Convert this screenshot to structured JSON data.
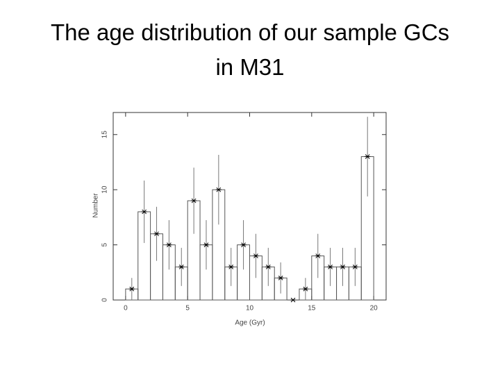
{
  "chart_data": {
    "type": "histogram",
    "title": "The age distribution of our sample GCs in M31",
    "x_label": "Age (Gyr)",
    "y_label": "Number",
    "bins": [
      0,
      1,
      2,
      3,
      4,
      5,
      6,
      7,
      8,
      9,
      10,
      11,
      12,
      13,
      14,
      15,
      16,
      17,
      18,
      19,
      20
    ],
    "values": [
      1,
      8,
      6,
      5,
      3,
      9,
      5,
      10,
      3,
      5,
      4,
      3,
      2,
      0,
      1,
      4,
      3,
      3,
      3,
      13
    ],
    "errors": [
      1,
      2.83,
      2.45,
      2.24,
      1.73,
      3,
      2.24,
      3.16,
      1.73,
      2.24,
      2,
      1.73,
      1.41,
      0,
      1,
      2,
      1.73,
      1.73,
      1.73,
      3.61
    ],
    "color": "#333333",
    "xlim": [
      -1,
      21
    ],
    "xticks": [
      0,
      5,
      10,
      15,
      20
    ],
    "ylim": [
      0,
      17
    ],
    "yticks": [
      0,
      5,
      10,
      15
    ]
  }
}
